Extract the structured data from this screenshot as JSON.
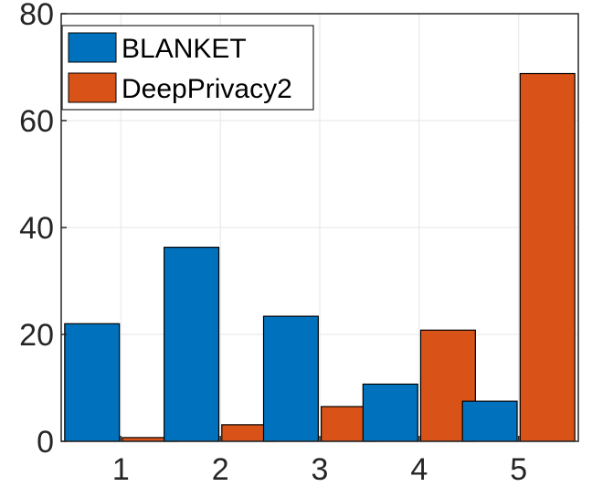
{
  "chart_data": {
    "type": "bar",
    "categories": [
      "1",
      "2",
      "3",
      "4",
      "5"
    ],
    "series": [
      {
        "name": "BLANKET",
        "color": "#0072bd",
        "values": [
          22.0,
          36.3,
          23.4,
          10.7,
          7.5
        ]
      },
      {
        "name": "DeepPrivacy2",
        "color": "#d95319",
        "values": [
          0.7,
          3.1,
          6.5,
          20.8,
          68.8
        ]
      }
    ],
    "yticks": [
      "0",
      "20",
      "40",
      "60",
      "80"
    ],
    "ylim": [
      0,
      80
    ],
    "grid": true,
    "legend": "top-left"
  }
}
